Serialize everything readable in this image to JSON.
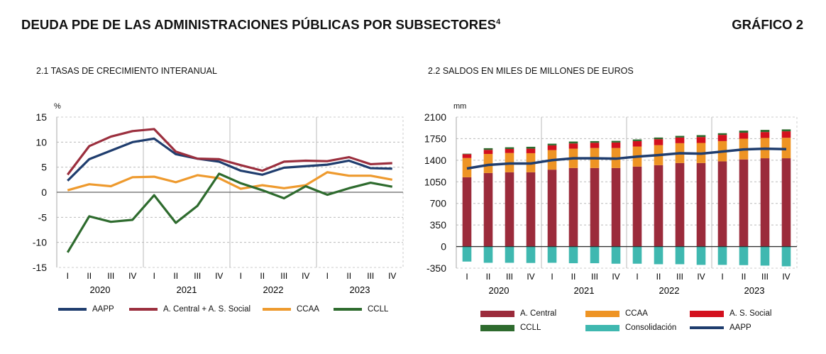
{
  "header": {
    "title": "DEUDA PDE DE LAS ADMINISTRACIONES PÚBLICAS POR SUBSECTORES",
    "footnote": "4",
    "figure": "GRÁFICO 2"
  },
  "chart_data": [
    {
      "type": "line",
      "title": "2.1 TASAS DE CRECIMIENTO INTERANUAL",
      "ylabel": "%",
      "ylim": [
        -15,
        15
      ],
      "yticks": [
        15,
        10,
        5,
        0,
        -5,
        -10,
        -15
      ],
      "grid": true,
      "legend": "bottom",
      "quarters": [
        "I",
        "II",
        "III",
        "IV",
        "I",
        "II",
        "III",
        "IV",
        "I",
        "II",
        "III",
        "IV",
        "I",
        "II",
        "III",
        "IV"
      ],
      "years": [
        "2020",
        "2021",
        "2022",
        "2023"
      ],
      "series": [
        {
          "name": "AAPP",
          "color": "#1f3d6e",
          "values": [
            2.3,
            6.6,
            8.3,
            10.0,
            10.7,
            7.6,
            6.7,
            6.1,
            4.3,
            3.5,
            4.9,
            5.2,
            5.5,
            6.3,
            4.8,
            4.7
          ]
        },
        {
          "name": "A. Central + A. S. Social",
          "color": "#9b2f3e",
          "values": [
            3.5,
            9.2,
            11.1,
            12.2,
            12.6,
            8.1,
            6.7,
            6.6,
            5.4,
            4.3,
            6.1,
            6.3,
            6.2,
            7.0,
            5.6,
            5.8
          ]
        },
        {
          "name": "CCAA",
          "color": "#ee9a2e",
          "values": [
            0.4,
            1.6,
            1.2,
            3.0,
            3.1,
            2.0,
            3.4,
            2.8,
            0.7,
            1.4,
            0.8,
            1.4,
            4.0,
            3.3,
            3.3,
            2.5
          ]
        },
        {
          "name": "CCLL",
          "color": "#2e6b2e",
          "values": [
            -12.0,
            -4.8,
            -5.9,
            -5.5,
            -0.6,
            -6.1,
            -2.7,
            3.7,
            1.8,
            0.4,
            -1.2,
            1.2,
            -0.5,
            0.8,
            1.9,
            1.1
          ]
        }
      ]
    },
    {
      "type": "bar",
      "stacked": true,
      "title": "2.2 SALDOS EN MILES DE MILLONES DE EUROS",
      "ylabel": "mm",
      "ylim": [
        -350,
        2100
      ],
      "yticks": [
        2100,
        1750,
        1400,
        1050,
        700,
        350,
        0,
        -350
      ],
      "grid": true,
      "legend": "bottom",
      "quarters": [
        "I",
        "II",
        "III",
        "IV",
        "I",
        "II",
        "III",
        "IV",
        "I",
        "II",
        "III",
        "IV",
        "I",
        "II",
        "III",
        "IV"
      ],
      "years": [
        "2020",
        "2021",
        "2022",
        "2023"
      ],
      "series": [
        {
          "name": "A. Central",
          "color": "#9b2b3b",
          "values": [
            1124,
            1193,
            1205,
            1205,
            1247,
            1274,
            1274,
            1274,
            1297,
            1320,
            1355,
            1355,
            1382,
            1413,
            1432,
            1432
          ]
        },
        {
          "name": "CCAA",
          "color": "#ee9424",
          "values": [
            312,
            309,
            312,
            309,
            317,
            313,
            324,
            324,
            325,
            325,
            321,
            325,
            328,
            336,
            329,
            332
          ]
        },
        {
          "name": "A. S. Social",
          "color": "#d3101e",
          "values": [
            62,
            66,
            66,
            73,
            77,
            85,
            85,
            89,
            88,
            96,
            92,
            96,
            101,
            97,
            96,
            105
          ]
        },
        {
          "name": "CCLL",
          "color": "#2e6b2e",
          "values": [
            8,
            27,
            27,
            31,
            27,
            31,
            27,
            27,
            27,
            27,
            27,
            31,
            27,
            34,
            35,
            31
          ]
        },
        {
          "name": "Consolidación",
          "color": "#3fb8b0",
          "values": [
            -243,
            -263,
            -263,
            -266,
            -263,
            -270,
            -270,
            -278,
            -278,
            -286,
            -286,
            -297,
            -297,
            -301,
            -309,
            -320
          ]
        }
      ],
      "line": {
        "name": "AAPP",
        "color": "#1f3d6e",
        "values": [
          1266,
          1324,
          1347,
          1347,
          1401,
          1432,
          1432,
          1425,
          1459,
          1483,
          1514,
          1506,
          1541,
          1575,
          1587,
          1579
        ]
      }
    }
  ]
}
